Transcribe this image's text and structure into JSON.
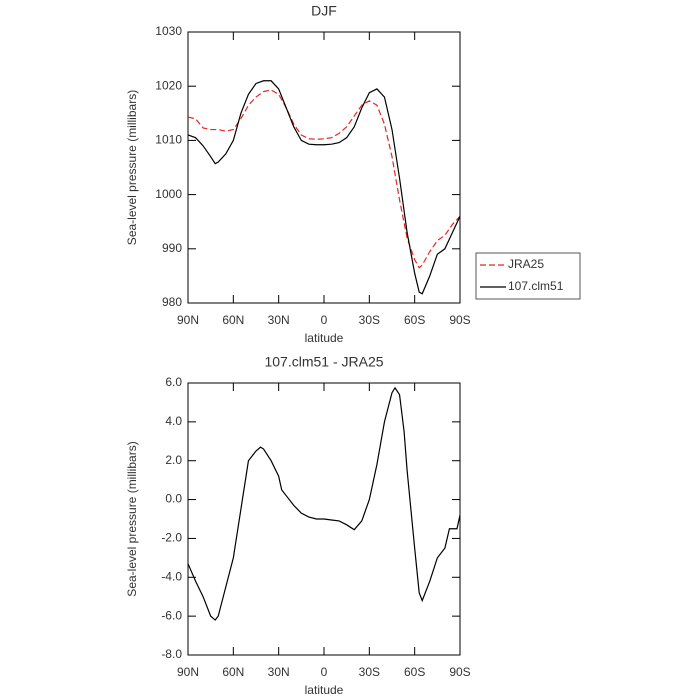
{
  "chart_data": [
    {
      "type": "line",
      "title": "DJF",
      "xlabel": "latitude",
      "ylabel": "Sea-level pressure (millibars)",
      "x": [
        90,
        85,
        80,
        75,
        72,
        70,
        65,
        60,
        55,
        50,
        45,
        40,
        35,
        30,
        25,
        20,
        15,
        10,
        5,
        0,
        -5,
        -10,
        -15,
        -20,
        -25,
        -30,
        -35,
        -40,
        -45,
        -50,
        -55,
        -60,
        -63,
        -65,
        -70,
        -75,
        -80,
        -85,
        -90
      ],
      "xlim": [
        90,
        -90
      ],
      "xticks": [
        {
          "value": 90,
          "label": "90N"
        },
        {
          "value": 60,
          "label": "60N"
        },
        {
          "value": 30,
          "label": "30N"
        },
        0,
        {
          "value": -30,
          "label": "30S"
        },
        {
          "value": -60,
          "label": "60S"
        },
        {
          "value": -90,
          "label": "90S"
        }
      ],
      "ylim": [
        980,
        1030
      ],
      "yticks": [
        980,
        990,
        1000,
        1010,
        1020,
        1030
      ],
      "legend": "right",
      "series": [
        {
          "name": "JRA25",
          "color": "#e8261f",
          "dash": true,
          "values": [
            1014.3,
            1014,
            1012.3,
            1012,
            1012,
            1012,
            1011.7,
            1012,
            1014,
            1016.5,
            1018,
            1019,
            1019.3,
            1018.5,
            1016,
            1013,
            1011,
            1010.3,
            1010.2,
            1010.3,
            1010.5,
            1011.3,
            1012.5,
            1014.5,
            1016.5,
            1017.3,
            1016.5,
            1013,
            1007,
            999,
            992,
            988,
            986.5,
            987,
            989.5,
            991.5,
            992.5,
            994.5,
            996
          ]
        },
        {
          "name": "107.clm51",
          "color": "#000000",
          "dash": false,
          "values": [
            1011,
            1010.5,
            1009,
            1007,
            1005.7,
            1006,
            1007.5,
            1010,
            1015,
            1018.5,
            1020.5,
            1021,
            1021,
            1019.5,
            1016,
            1012.5,
            1010,
            1009.3,
            1009.2,
            1009.2,
            1009.3,
            1009.6,
            1010.5,
            1012.5,
            1016,
            1018.8,
            1019.5,
            1018,
            1012,
            1003,
            993,
            985.5,
            982,
            981.7,
            985,
            989,
            990,
            993,
            996
          ]
        }
      ]
    },
    {
      "type": "line",
      "title": "107.clm51 - JRA25",
      "xlabel": "latitude",
      "ylabel": "Sea-level pressure (millibars)",
      "x": [
        90,
        85,
        80,
        75,
        72,
        70,
        65,
        60,
        55,
        52,
        50,
        45,
        42,
        40,
        35,
        30,
        28,
        25,
        20,
        15,
        10,
        5,
        0,
        -5,
        -10,
        -15,
        -20,
        -25,
        -30,
        -35,
        -40,
        -45,
        -47,
        -50,
        -53,
        -55,
        -60,
        -63,
        -65,
        -70,
        -75,
        -80,
        -83,
        -88,
        -90
      ],
      "xlim": [
        90,
        -90
      ],
      "xticks": [
        {
          "value": 90,
          "label": "90N"
        },
        {
          "value": 60,
          "label": "60N"
        },
        {
          "value": 30,
          "label": "30N"
        },
        0,
        {
          "value": -30,
          "label": "30S"
        },
        {
          "value": -60,
          "label": "60S"
        },
        {
          "value": -90,
          "label": "90S"
        }
      ],
      "ylim": [
        -8,
        6
      ],
      "yticks": [
        {
          "value": -8,
          "label": "-8.0"
        },
        {
          "value": -6,
          "label": "-6.0"
        },
        {
          "value": -4,
          "label": "-4.0"
        },
        {
          "value": -2,
          "label": "-2.0"
        },
        {
          "value": 0,
          "label": "0.0"
        },
        {
          "value": 2,
          "label": "2.0"
        },
        {
          "value": 4,
          "label": "4.0"
        },
        {
          "value": 6,
          "label": "6.0"
        }
      ],
      "series": [
        {
          "color": "#000000",
          "dash": false,
          "values": [
            -3.3,
            -4.2,
            -5.0,
            -6.0,
            -6.2,
            -6.0,
            -4.5,
            -3.0,
            -0.5,
            1.0,
            2.0,
            2.5,
            2.7,
            2.6,
            2.0,
            1.2,
            0.5,
            0.2,
            -0.3,
            -0.7,
            -0.9,
            -1.0,
            -1.0,
            -1.05,
            -1.1,
            -1.3,
            -1.55,
            -1.1,
            0,
            1.8,
            4.0,
            5.5,
            5.75,
            5.4,
            3.5,
            1.5,
            -2.5,
            -4.8,
            -5.2,
            -4.2,
            -3.0,
            -2.5,
            -1.5,
            -1.5,
            -0.8
          ]
        }
      ]
    }
  ]
}
